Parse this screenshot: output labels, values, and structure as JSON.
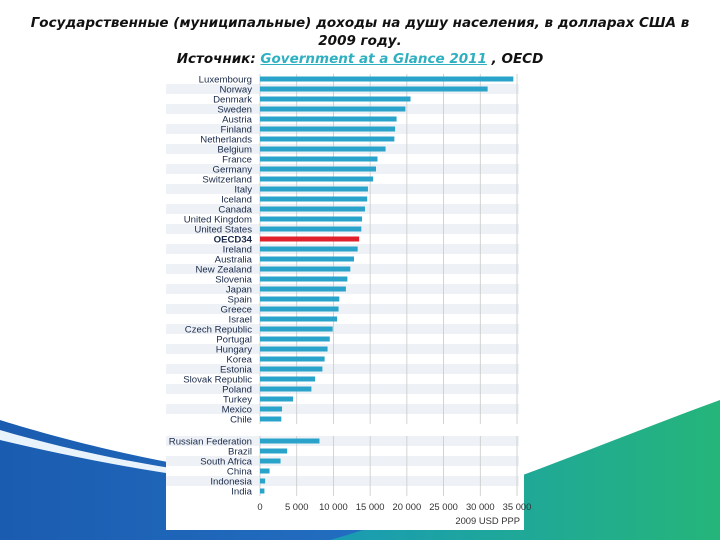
{
  "header": {
    "line1": "Государственные (муниципальные) доходы на душу населения, в долларах США в",
    "line2": "2009 году.",
    "source_prefix": "Источник: ",
    "source_link": "Government at a Glance 2011",
    "source_suffix": " , OECD"
  },
  "colors": {
    "bar": "#29a3c9",
    "highlight": "#e0202a",
    "grid": "#c8c8c8",
    "row_stripe": "#eef2f6",
    "label": "#1a2a4a",
    "background_blue": "#1e63b4",
    "background_green": "#23b07a"
  },
  "chart_data": {
    "type": "bar",
    "orientation": "horizontal",
    "xlim": [
      0,
      35000
    ],
    "xticks": [
      "0",
      "5 000",
      "10 000",
      "15 000",
      "20 000",
      "25 000",
      "30 000",
      "35 000"
    ],
    "xtick_values": [
      0,
      5000,
      10000,
      15000,
      20000,
      25000,
      30000,
      35000
    ],
    "xlabel": "2009 USD PPP",
    "grid": "vertical",
    "groups": [
      {
        "items": [
          {
            "label": "Luxembourg",
            "value": 34500
          },
          {
            "label": "Norway",
            "value": 31000
          },
          {
            "label": "Denmark",
            "value": 20500
          },
          {
            "label": "Sweden",
            "value": 19800
          },
          {
            "label": "Austria",
            "value": 18600
          },
          {
            "label": "Finland",
            "value": 18400
          },
          {
            "label": "Netherlands",
            "value": 18300
          },
          {
            "label": "Belgium",
            "value": 17100
          },
          {
            "label": "France",
            "value": 16000
          },
          {
            "label": "Germany",
            "value": 15800
          },
          {
            "label": "Switzerland",
            "value": 15400
          },
          {
            "label": "Italy",
            "value": 14700
          },
          {
            "label": "Iceland",
            "value": 14600
          },
          {
            "label": "Canada",
            "value": 14300
          },
          {
            "label": "United Kingdom",
            "value": 13900
          },
          {
            "label": "United States",
            "value": 13800
          },
          {
            "label": "OECD34",
            "value": 13500,
            "highlight": true
          },
          {
            "label": "Ireland",
            "value": 13300
          },
          {
            "label": "Australia",
            "value": 12800
          },
          {
            "label": "New Zealand",
            "value": 12300
          },
          {
            "label": "Slovenia",
            "value": 11900
          },
          {
            "label": "Japan",
            "value": 11700
          },
          {
            "label": "Spain",
            "value": 10800
          },
          {
            "label": "Greece",
            "value": 10700
          },
          {
            "label": "Israel",
            "value": 10500
          },
          {
            "label": "Czech Republic",
            "value": 9900
          },
          {
            "label": "Portugal",
            "value": 9500
          },
          {
            "label": "Hungary",
            "value": 9200
          },
          {
            "label": "Korea",
            "value": 8800
          },
          {
            "label": "Estonia",
            "value": 8500
          },
          {
            "label": "Slovak Republic",
            "value": 7500
          },
          {
            "label": "Poland",
            "value": 7000
          },
          {
            "label": "Turkey",
            "value": 4500
          },
          {
            "label": "Mexico",
            "value": 3000
          },
          {
            "label": "Chile",
            "value": 2900
          }
        ]
      },
      {
        "items": [
          {
            "label": "Russian Federation",
            "value": 8100
          },
          {
            "label": "Brazil",
            "value": 3700
          },
          {
            "label": "South Africa",
            "value": 2800
          },
          {
            "label": "China",
            "value": 1300
          },
          {
            "label": "Indonesia",
            "value": 700
          },
          {
            "label": "India",
            "value": 600
          }
        ]
      }
    ]
  }
}
